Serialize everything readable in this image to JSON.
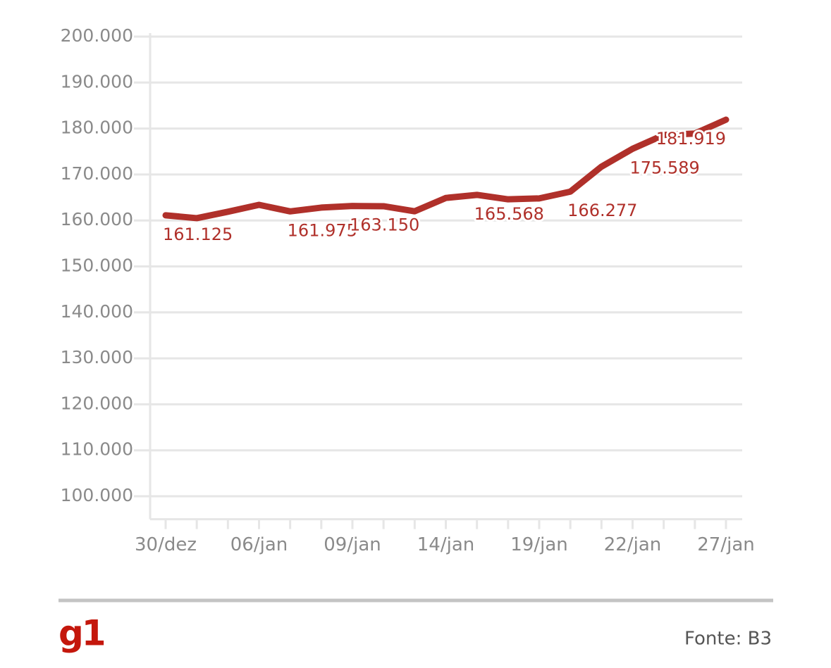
{
  "chart_data": {
    "type": "line",
    "categories": [
      "30/dez",
      null,
      null,
      "06/jan",
      null,
      null,
      "09/jan",
      null,
      null,
      "14/jan",
      null,
      null,
      "19/jan",
      null,
      null,
      "22/jan",
      null,
      null,
      "27/jan"
    ],
    "series": [
      {
        "color": "#b0302a",
        "values": [
          161125,
          160500,
          161900,
          163400,
          161975,
          162800,
          163150,
          163100,
          162000,
          164900,
          165568,
          164600,
          164800,
          166277,
          171700,
          175589,
          178600,
          178900,
          181919
        ],
        "value_labels": [
          "161.125",
          null,
          null,
          null,
          "161.975",
          null,
          "163.150",
          null,
          null,
          null,
          "165.568",
          null,
          null,
          "166.277",
          null,
          "175.589",
          null,
          null,
          "181.919"
        ]
      }
    ],
    "ylim": [
      95000,
      200000
    ],
    "yticks": [
      {
        "value": 100000,
        "label": "100.000"
      },
      {
        "value": 110000,
        "label": "110.000"
      },
      {
        "value": 120000,
        "label": "120.000"
      },
      {
        "value": 130000,
        "label": "130.000"
      },
      {
        "value": 140000,
        "label": "140.000"
      },
      {
        "value": 150000,
        "label": "150.000"
      },
      {
        "value": 160000,
        "label": "160.000"
      },
      {
        "value": 170000,
        "label": "170.000"
      },
      {
        "value": 180000,
        "label": "180.000"
      },
      {
        "value": 190000,
        "label": "190.000"
      },
      {
        "value": 200000,
        "label": "200.000"
      }
    ],
    "grid": true
  },
  "footer": {
    "logo": "g1",
    "source": "Fonte: B3"
  }
}
